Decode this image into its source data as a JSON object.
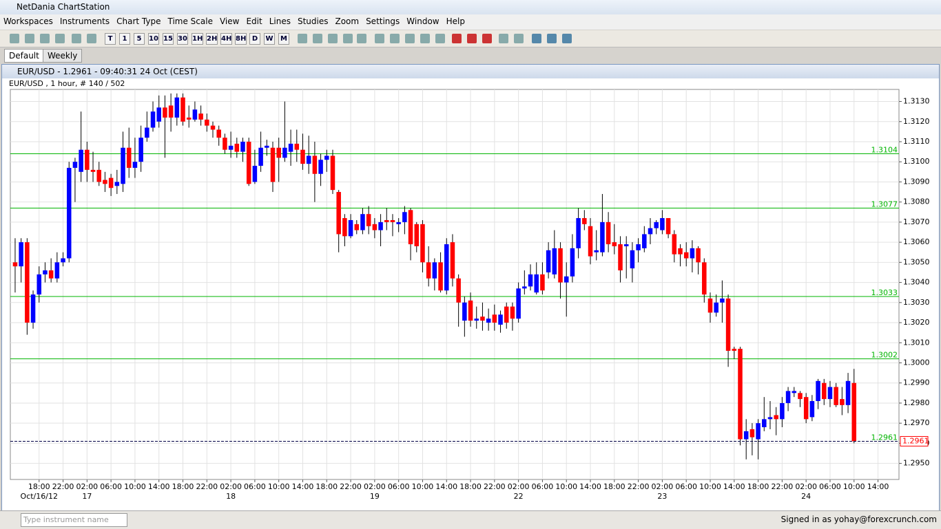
{
  "window": {
    "title": "NetDania ChartStation"
  },
  "menu": [
    "Workspaces",
    "Instruments",
    "Chart Type",
    "Time Scale",
    "View",
    "Edit",
    "Lines",
    "Studies",
    "Zoom",
    "Settings",
    "Window",
    "Help"
  ],
  "toolbar": {
    "timeframes": [
      "T",
      "1",
      "5",
      "10",
      "15",
      "30",
      "1H",
      "2H",
      "4H",
      "8H",
      "D",
      "W",
      "M"
    ]
  },
  "tabs": [
    "Default",
    "Weekly"
  ],
  "chart_window": {
    "title": "EUR/USD - 1.2961 - 09:40:31  24 Oct (CEST)"
  },
  "chart_data": {
    "type": "candlestick",
    "subtitle": "EUR/USD , 1 hour, # 140 / 502",
    "open": [
      1.305,
      1.3048,
      1.306,
      1.302,
      1.3034,
      1.3044,
      1.3046,
      1.3042,
      1.305,
      1.3052,
      1.3097,
      1.3095,
      1.3106,
      1.3096,
      1.3096,
      1.3091,
      1.3092,
      1.3088,
      1.3089,
      1.3107,
      1.3097,
      1.31,
      1.3112,
      1.3117,
      1.312,
      1.3127,
      1.3128,
      1.3122,
      1.3132,
      1.3122,
      1.3121,
      1.3124,
      1.3121,
      1.3118,
      1.3116,
      1.3112,
      1.3106,
      1.3109,
      1.3105,
      1.311,
      1.309,
      1.3098,
      1.3107,
      1.3107,
      1.3107,
      1.3102,
      1.3105,
      1.3109,
      1.3106,
      1.3099,
      1.3103,
      1.3094,
      1.3101,
      1.3103,
      1.3085,
      1.3072,
      1.3063,
      1.3069,
      1.3066,
      1.3074,
      1.3069,
      1.3066,
      1.3071,
      1.3071,
      1.3069,
      1.307,
      1.3076,
      1.3069,
      1.3069,
      1.305,
      1.3042,
      1.305,
      1.3036,
      1.306,
      1.3042,
      1.3021,
      1.3031,
      1.3021,
      1.3023,
      1.302,
      1.3024,
      1.3019,
      1.3028,
      1.3028,
      1.3022,
      1.3037,
      1.3038,
      1.3035,
      1.3044,
      1.3045,
      1.3044,
      1.3057,
      1.304,
      1.3043,
      1.3057,
      1.3072,
      1.3068,
      1.3055,
      1.3055,
      1.307,
      1.306,
      1.3059,
      1.3058,
      1.3047,
      1.3056,
      1.3057,
      1.3064,
      1.3067,
      1.3066,
      1.3072,
      1.3064,
      1.3057,
      1.3055,
      1.3052,
      1.3057,
      1.305,
      1.3032,
      1.3025,
      1.303,
      1.3032,
      1.3007,
      1.3007,
      1.2962,
      1.2967,
      1.2962,
      1.2968,
      1.2972,
      1.2974,
      1.2972,
      1.298,
      1.2985,
      1.2985,
      1.2983,
      1.2973,
      1.2981,
      1.299,
      1.2982,
      1.2988,
      1.2982,
      1.2979,
      1.299
    ],
    "high": [
      1.3062,
      1.3062,
      1.3062,
      1.3036,
      1.3048,
      1.305,
      1.3052,
      1.3055,
      1.3055,
      1.31,
      1.3102,
      1.3125,
      1.311,
      1.3105,
      1.31,
      1.3095,
      1.3094,
      1.3096,
      1.3115,
      1.3117,
      1.3112,
      1.3118,
      1.3125,
      1.313,
      1.3133,
      1.3133,
      1.3134,
      1.3134,
      1.3134,
      1.3128,
      1.313,
      1.3128,
      1.3124,
      1.312,
      1.3118,
      1.3114,
      1.3115,
      1.3112,
      1.3112,
      1.3112,
      1.3106,
      1.3115,
      1.3111,
      1.311,
      1.3112,
      1.313,
      1.3116,
      1.3116,
      1.3114,
      1.3113,
      1.311,
      1.3104,
      1.3106,
      1.3106,
      1.3086,
      1.3074,
      1.3074,
      1.3071,
      1.3077,
      1.3078,
      1.3072,
      1.3074,
      1.3077,
      1.3074,
      1.3072,
      1.3078,
      1.3077,
      1.307,
      1.3071,
      1.3058,
      1.3052,
      1.3055,
      1.3062,
      1.3064,
      1.3044,
      1.3033,
      1.3035,
      1.3028,
      1.303,
      1.3027,
      1.3029,
      1.3026,
      1.303,
      1.303,
      1.304,
      1.3046,
      1.3049,
      1.305,
      1.305,
      1.306,
      1.3066,
      1.306,
      1.305,
      1.3064,
      1.3077,
      1.3076,
      1.3072,
      1.3066,
      1.3084,
      1.3075,
      1.3069,
      1.3063,
      1.3063,
      1.306,
      1.3062,
      1.3068,
      1.3072,
      1.3071,
      1.3076,
      1.3072,
      1.3066,
      1.3059,
      1.306,
      1.3061,
      1.3058,
      1.3052,
      1.3035,
      1.3034,
      1.3041,
      1.3034,
      1.3008,
      1.3008,
      1.2972,
      1.297,
      1.2972,
      1.2983,
      1.2981,
      1.2978,
      1.2983,
      1.2988,
      1.2988,
      1.2986,
      1.2985,
      1.2984,
      1.2992,
      1.2992,
      1.2991,
      1.299,
      1.2988,
      1.2995,
      1.2997
    ],
    "low": [
      1.3035,
      1.304,
      1.3014,
      1.3017,
      1.303,
      1.304,
      1.304,
      1.304,
      1.3048,
      1.305,
      1.308,
      1.309,
      1.309,
      1.309,
      1.3088,
      1.3085,
      1.3083,
      1.3084,
      1.3085,
      1.3092,
      1.3092,
      1.3095,
      1.311,
      1.3115,
      1.3117,
      1.3102,
      1.3115,
      1.3118,
      1.3118,
      1.3117,
      1.312,
      1.3118,
      1.3115,
      1.3112,
      1.3108,
      1.3104,
      1.3102,
      1.3102,
      1.31,
      1.3088,
      1.3089,
      1.3095,
      1.3103,
      1.3085,
      1.309,
      1.31,
      1.3098,
      1.31,
      1.3096,
      1.3094,
      1.308,
      1.3088,
      1.3095,
      1.3084,
      1.3055,
      1.3058,
      1.3062,
      1.3064,
      1.3064,
      1.3064,
      1.3062,
      1.3058,
      1.3066,
      1.3063,
      1.3065,
      1.3064,
      1.3051,
      1.3055,
      1.3045,
      1.3038,
      1.3036,
      1.3035,
      1.3034,
      1.3038,
      1.3018,
      1.3013,
      1.3018,
      1.3017,
      1.3016,
      1.3016,
      1.3016,
      1.3015,
      1.3017,
      1.3016,
      1.302,
      1.3034,
      1.3036,
      1.3034,
      1.3034,
      1.3042,
      1.3042,
      1.3032,
      1.3023,
      1.304,
      1.3052,
      1.3066,
      1.3049,
      1.3051,
      1.3053,
      1.3055,
      1.3054,
      1.304,
      1.3042,
      1.304,
      1.305,
      1.3055,
      1.3059,
      1.3064,
      1.3064,
      1.3062,
      1.305,
      1.3048,
      1.3048,
      1.3045,
      1.3044,
      1.303,
      1.302,
      1.3023,
      1.302,
      1.2998,
      1.3002,
      1.2959,
      1.2952,
      1.2954,
      1.2952,
      1.2966,
      1.2967,
      1.2964,
      1.2968,
      1.2976,
      1.2983,
      1.2978,
      1.297,
      1.2971,
      1.2977,
      1.2979,
      1.2978,
      1.2978,
      1.2974,
      1.2975,
      1.296
    ],
    "close": [
      1.3048,
      1.306,
      1.302,
      1.3034,
      1.3044,
      1.3046,
      1.3042,
      1.305,
      1.3052,
      1.3097,
      1.31,
      1.3106,
      1.3096,
      1.3095,
      1.309,
      1.3089,
      1.3087,
      1.309,
      1.3107,
      1.3097,
      1.31,
      1.3112,
      1.3117,
      1.3125,
      1.3127,
      1.3122,
      1.3122,
      1.3132,
      1.312,
      1.3121,
      1.3126,
      1.3121,
      1.3118,
      1.3116,
      1.3112,
      1.3106,
      1.3108,
      1.3105,
      1.311,
      1.3089,
      1.3098,
      1.3107,
      1.3108,
      1.309,
      1.3102,
      1.3107,
      1.3109,
      1.3106,
      1.3099,
      1.3103,
      1.3094,
      1.3101,
      1.3103,
      1.3086,
      1.3064,
      1.3063,
      1.3071,
      1.3066,
      1.3074,
      1.3068,
      1.3066,
      1.307,
      1.307,
      1.307,
      1.307,
      1.3075,
      1.3059,
      1.3058,
      1.305,
      1.3042,
      1.305,
      1.3036,
      1.3059,
      1.3042,
      1.303,
      1.303,
      1.3021,
      1.3022,
      1.3021,
      1.3022,
      1.302,
      1.3024,
      1.302,
      1.3022,
      1.3037,
      1.3038,
      1.3044,
      1.3044,
      1.3036,
      1.3056,
      1.3057,
      1.304,
      1.3043,
      1.3057,
      1.3072,
      1.3069,
      1.3053,
      1.3056,
      1.307,
      1.3059,
      1.3058,
      1.3046,
      1.3059,
      1.3056,
      1.3059,
      1.3064,
      1.3067,
      1.307,
      1.3072,
      1.3064,
      1.3054,
      1.3054,
      1.3052,
      1.3057,
      1.305,
      1.3034,
      1.3025,
      1.303,
      1.3032,
      1.3006,
      1.3006,
      1.2962,
      1.2966,
      1.2963,
      1.297,
      1.2972,
      1.2973,
      1.2972,
      1.298,
      1.2986,
      1.2986,
      1.2982,
      1.2972,
      1.2981,
      1.2991,
      1.2982,
      1.2988,
      1.2979,
      1.2979,
      1.2991,
      1.2961
    ],
    "up_color": "#0000ff",
    "down_color": "#ff0000",
    "xlim": [
      -0.8,
      147.5
    ],
    "xticks": [
      {
        "value": 4,
        "label": "18:00"
      },
      {
        "value": 8,
        "label": "22:00"
      },
      {
        "value": 12,
        "label": "02:00"
      },
      {
        "value": 16,
        "label": "06:00"
      },
      {
        "value": 20,
        "label": "10:00"
      },
      {
        "value": 24,
        "label": "14:00"
      },
      {
        "value": 28,
        "label": "18:00"
      },
      {
        "value": 32,
        "label": "22:00"
      },
      {
        "value": 36,
        "label": "02:00"
      },
      {
        "value": 40,
        "label": "06:00"
      },
      {
        "value": 44,
        "label": "10:00"
      },
      {
        "value": 48,
        "label": "14:00"
      },
      {
        "value": 52,
        "label": "18:00"
      },
      {
        "value": 56,
        "label": "22:00"
      },
      {
        "value": 60,
        "label": "02:00"
      },
      {
        "value": 64,
        "label": "06:00"
      },
      {
        "value": 68,
        "label": "10:00"
      },
      {
        "value": 72,
        "label": "14:00"
      },
      {
        "value": 76,
        "label": "18:00"
      },
      {
        "value": 80,
        "label": "22:00"
      },
      {
        "value": 84,
        "label": "02:00"
      },
      {
        "value": 88,
        "label": "06:00"
      },
      {
        "value": 92,
        "label": "10:00"
      },
      {
        "value": 96,
        "label": "14:00"
      },
      {
        "value": 100,
        "label": "18:00"
      },
      {
        "value": 104,
        "label": "22:00"
      },
      {
        "value": 108,
        "label": "02:00"
      },
      {
        "value": 112,
        "label": "06:00"
      },
      {
        "value": 116,
        "label": "10:00"
      },
      {
        "value": 120,
        "label": "14:00"
      },
      {
        "value": 124,
        "label": "18:00"
      },
      {
        "value": 128,
        "label": "22:00"
      },
      {
        "value": 132,
        "label": "02:00"
      },
      {
        "value": 136,
        "label": "06:00"
      },
      {
        "value": 140,
        "label": "10:00"
      },
      {
        "value": 144,
        "label": "14:00"
      }
    ],
    "xticks2": [
      {
        "value": 4,
        "label": "Oct/16/12"
      },
      {
        "value": 12,
        "label": "17"
      },
      {
        "value": 36,
        "label": "18"
      },
      {
        "value": 60,
        "label": "19"
      },
      {
        "value": 84,
        "label": "22"
      },
      {
        "value": 108,
        "label": "23"
      },
      {
        "value": 132,
        "label": "24"
      }
    ],
    "ylim": [
      1.2942,
      1.3136
    ],
    "yticks": [
      {
        "value": 1.295,
        "label": "1.2950"
      },
      {
        "value": 1.296,
        "label": "1.2960"
      },
      {
        "value": 1.297,
        "label": "1.2970"
      },
      {
        "value": 1.298,
        "label": "1.2980"
      },
      {
        "value": 1.299,
        "label": "1.2990"
      },
      {
        "value": 1.3,
        "label": "1.3000"
      },
      {
        "value": 1.301,
        "label": "1.3010"
      },
      {
        "value": 1.302,
        "label": "1.3020"
      },
      {
        "value": 1.303,
        "label": "1.3030"
      },
      {
        "value": 1.304,
        "label": "1.3040"
      },
      {
        "value": 1.305,
        "label": "1.3050"
      },
      {
        "value": 1.306,
        "label": "1.3060"
      },
      {
        "value": 1.307,
        "label": "1.3070"
      },
      {
        "value": 1.308,
        "label": "1.3080"
      },
      {
        "value": 1.309,
        "label": "1.3090"
      },
      {
        "value": 1.31,
        "label": "1.3100"
      },
      {
        "value": 1.311,
        "label": "1.3110"
      },
      {
        "value": 1.312,
        "label": "1.3120"
      },
      {
        "value": 1.313,
        "label": "1.3130"
      }
    ],
    "grid": true,
    "hlines": [
      1.3104,
      1.3077,
      1.3033,
      1.3002
    ],
    "hline_color": "#00b400",
    "last_price": 1.2961
  },
  "input": {
    "placeholder": "Type instrument name"
  },
  "status": "Signed in as yohay@forexcrunch.com"
}
